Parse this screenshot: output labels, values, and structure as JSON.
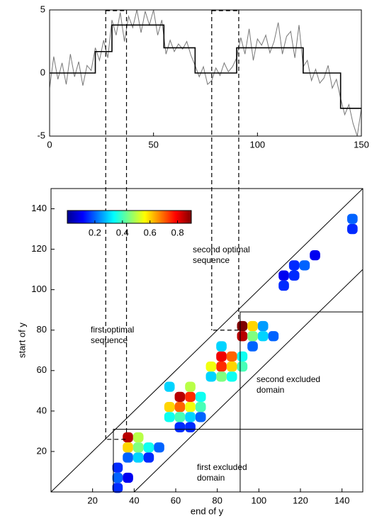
{
  "chart_data": [
    {
      "type": "line",
      "xlim": [
        0,
        150
      ],
      "ylim": [
        -5,
        5
      ],
      "xticks": [
        0,
        50,
        100,
        150
      ],
      "yticks": [
        -5,
        0,
        5
      ],
      "series": [
        {
          "color": "#777777",
          "x": [
            0,
            2,
            4,
            6,
            8,
            10,
            12,
            14,
            16,
            18,
            20,
            22,
            24,
            26,
            28,
            30,
            32,
            34,
            36,
            38,
            40,
            42,
            44,
            46,
            48,
            50,
            52,
            54,
            56,
            58,
            60,
            62,
            64,
            66,
            68,
            70,
            72,
            74,
            76,
            78,
            80,
            82,
            84,
            86,
            88,
            90,
            92,
            94,
            96,
            98,
            100,
            102,
            104,
            106,
            108,
            110,
            112,
            114,
            116,
            118,
            120,
            122,
            124,
            126,
            128,
            130,
            132,
            134,
            136,
            138,
            140,
            142,
            144,
            146,
            148,
            150
          ],
          "values": [
            -1.2,
            1.3,
            -0.5,
            0.8,
            -0.9,
            1.5,
            -0.3,
            0.9,
            -1.0,
            0.6,
            0.2,
            2.0,
            1.0,
            2.6,
            1.2,
            4.2,
            3.0,
            4.8,
            2.5,
            4.5,
            3.6,
            5.0,
            3.2,
            4.9,
            3.8,
            5.0,
            3.0,
            4.2,
            1.5,
            2.6,
            1.7,
            2.3,
            1.9,
            2.5,
            1.4,
            0.6,
            -0.3,
            0.5,
            -0.9,
            -0.6,
            0.4,
            -0.2,
            0.8,
            0.1,
            0.5,
            1.2,
            2.8,
            1.5,
            3.5,
            1.0,
            2.7,
            2.2,
            3.0,
            1.6,
            2.5,
            4.0,
            1.5,
            2.9,
            3.3,
            1.2,
            3.8,
            0.5,
            1.0,
            -0.6,
            0.3,
            -0.8,
            -0.4,
            0.6,
            -1.2,
            -0.5,
            -2.0,
            -3.3,
            -2.5,
            -4.0,
            -5.0,
            -2.8
          ]
        },
        {
          "color": "#000000",
          "x": [
            0,
            22,
            22,
            30,
            30,
            55,
            55,
            70,
            70,
            90,
            90,
            122,
            122,
            140,
            140,
            150
          ],
          "values": [
            0,
            0,
            1.7,
            1.7,
            3.8,
            3.8,
            2,
            2,
            0,
            0,
            2,
            2,
            0,
            0,
            -2.8,
            -2.8
          ]
        }
      ],
      "guides_x": [
        27,
        37,
        78,
        91
      ]
    },
    {
      "type": "heatmap",
      "xlabel": "end of y",
      "ylabel": "start of y",
      "xlim": [
        0,
        150
      ],
      "ylim": [
        0,
        150
      ],
      "xticks": [
        20,
        40,
        60,
        80,
        100,
        120,
        140
      ],
      "yticks": [
        20,
        40,
        60,
        80,
        100,
        120,
        140
      ],
      "clim": [
        0,
        0.9
      ],
      "cticks": [
        0.2,
        0.4,
        0.6,
        0.8
      ],
      "x": [
        32,
        32,
        32,
        37,
        37,
        37,
        42,
        42,
        47,
        52,
        47,
        37,
        42,
        62,
        67,
        57,
        62,
        67,
        72,
        57,
        62,
        67,
        72,
        57,
        67,
        72,
        62,
        67,
        82,
        87,
        82,
        77,
        87,
        92,
        82,
        77,
        87,
        92,
        82,
        92,
        92,
        97,
        97,
        102,
        107,
        102,
        97,
        112,
        117,
        122,
        117,
        127,
        112,
        145,
        145
      ],
      "y": [
        2,
        7,
        12,
        7,
        27,
        22,
        27,
        22,
        22,
        22,
        17,
        17,
        17,
        47,
        47,
        42,
        42,
        42,
        42,
        37,
        37,
        37,
        37,
        52,
        52,
        47,
        32,
        32,
        67,
        67,
        62,
        62,
        62,
        62,
        57,
        57,
        57,
        67,
        72,
        82,
        77,
        82,
        77,
        77,
        77,
        82,
        72,
        107,
        112,
        112,
        107,
        117,
        102,
        130,
        135
      ],
      "values": [
        0.15,
        0.2,
        0.15,
        0.1,
        0.85,
        0.6,
        0.5,
        0.45,
        0.35,
        0.2,
        0.15,
        0.2,
        0.3,
        0.85,
        0.75,
        0.6,
        0.7,
        0.55,
        0.4,
        0.35,
        0.4,
        0.3,
        0.2,
        0.3,
        0.5,
        0.35,
        0.15,
        0.15,
        0.8,
        0.7,
        0.75,
        0.55,
        0.6,
        0.4,
        0.45,
        0.3,
        0.35,
        0.35,
        0.3,
        0.9,
        0.85,
        0.6,
        0.45,
        0.3,
        0.2,
        0.25,
        0.2,
        0.1,
        0.15,
        0.2,
        0.15,
        0.1,
        0.15,
        0.15,
        0.2
      ],
      "diagonal_offsets": [
        0,
        40
      ],
      "guides": [
        {
          "x": 27,
          "y": 26
        },
        {
          "x": 37,
          "y": 26
        },
        {
          "x": 78,
          "y": 80
        },
        {
          "x": 91,
          "y": 80
        }
      ],
      "annotations": [
        {
          "text": "first optimal sequence"
        },
        {
          "text": "second optimal sequence"
        },
        {
          "text": "second excluded domain",
          "x": [
            91,
            150
          ],
          "y": [
            0,
            89
          ]
        },
        {
          "text": "first excluded domain",
          "x": [
            30,
            150
          ],
          "y": [
            0,
            31
          ]
        }
      ]
    }
  ]
}
